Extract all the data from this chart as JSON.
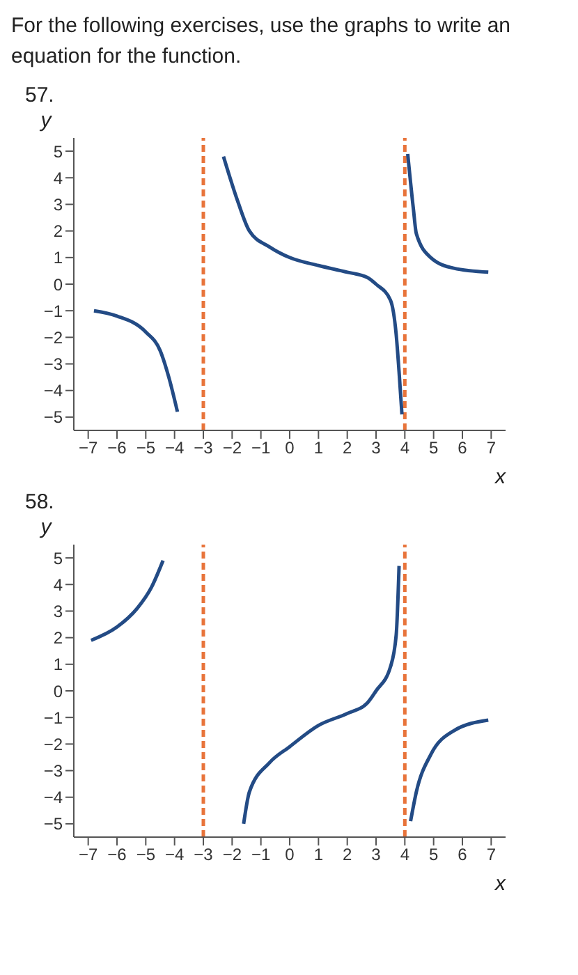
{
  "chart_data": [
    {
      "type": "line",
      "title": "57.",
      "annotations": [
        "For the following exercises, use the graphs to write an equation for the function."
      ],
      "xlabel": "x",
      "ylabel": "y",
      "xlim": [
        -7.5,
        7.5
      ],
      "ylim": [
        -5.5,
        5.5
      ],
      "xticks": [
        -7,
        -6,
        -5,
        -4,
        -3,
        -2,
        -1,
        0,
        1,
        2,
        3,
        4,
        5,
        6,
        7
      ],
      "yticks": [
        -5,
        -4,
        -3,
        -2,
        -1,
        0,
        1,
        2,
        3,
        4,
        5
      ],
      "grid": false,
      "legend": false,
      "marker": "none",
      "line_style": "solid",
      "ref_lines": [
        {
          "axis": "x",
          "value": -3,
          "color": "#e8743b",
          "line_style": "dashed"
        },
        {
          "axis": "x",
          "value": 4,
          "color": "#e8743b",
          "line_style": "dashed"
        }
      ],
      "series": [
        {
          "color": "#234b85",
          "x": [
            -6.8,
            -6,
            -5,
            -4.5,
            -4.2,
            -3.9
          ],
          "values": [
            -1.0,
            -1.2,
            -1.8,
            -2.5,
            -3.5,
            -4.8
          ]
        },
        {
          "color": "#234b85",
          "x": [
            -2.3,
            -1.8,
            -1.4,
            -0.7,
            0,
            1,
            2,
            2.7,
            3,
            3.5,
            3.7,
            3.8,
            3.9
          ],
          "values": [
            4.8,
            3.1,
            2.0,
            1.4,
            1.0,
            0.7,
            0.45,
            0.25,
            0,
            -0.6,
            -1.9,
            -3.3,
            -4.9
          ]
        },
        {
          "color": "#234b85",
          "x": [
            4.1,
            4.3,
            4.4,
            4.9,
            5.7,
            6.9
          ],
          "values": [
            4.9,
            2.8,
            1.9,
            1.0,
            0.6,
            0.45
          ]
        }
      ]
    },
    {
      "type": "line",
      "title": "58.",
      "xlabel": "x",
      "ylabel": "y",
      "xlim": [
        -7.5,
        7.5
      ],
      "ylim": [
        -5.5,
        5.5
      ],
      "xticks": [
        -7,
        -6,
        -5,
        -4,
        -3,
        -2,
        -1,
        0,
        1,
        2,
        3,
        4,
        5,
        6,
        7
      ],
      "yticks": [
        -5,
        -4,
        -3,
        -2,
        -1,
        0,
        1,
        2,
        3,
        4,
        5
      ],
      "grid": false,
      "legend": false,
      "marker": "none",
      "line_style": "solid",
      "ref_lines": [
        {
          "axis": "x",
          "value": -3,
          "color": "#e8743b",
          "line_style": "dashed"
        },
        {
          "axis": "x",
          "value": 4,
          "color": "#e8743b",
          "line_style": "dashed"
        }
      ],
      "series": [
        {
          "color": "#234b85",
          "x": [
            -6.9,
            -6,
            -5.3,
            -4.8,
            -4.4
          ],
          "values": [
            1.9,
            2.4,
            3.1,
            3.9,
            4.9
          ]
        },
        {
          "color": "#234b85",
          "x": [
            -1.6,
            -1.4,
            -0.7,
            0,
            1,
            2,
            2.7,
            3,
            3.5,
            3.7,
            3.8
          ],
          "values": [
            -5.0,
            -3.8,
            -2.7,
            -2.1,
            -1.3,
            -0.85,
            -0.45,
            0,
            0.9,
            2.1,
            4.7
          ]
        },
        {
          "color": "#234b85",
          "x": [
            4.2,
            4.4,
            4.9,
            5.7,
            6.9
          ],
          "values": [
            -4.9,
            -3.8,
            -2.4,
            -1.5,
            -1.1
          ]
        }
      ]
    }
  ]
}
